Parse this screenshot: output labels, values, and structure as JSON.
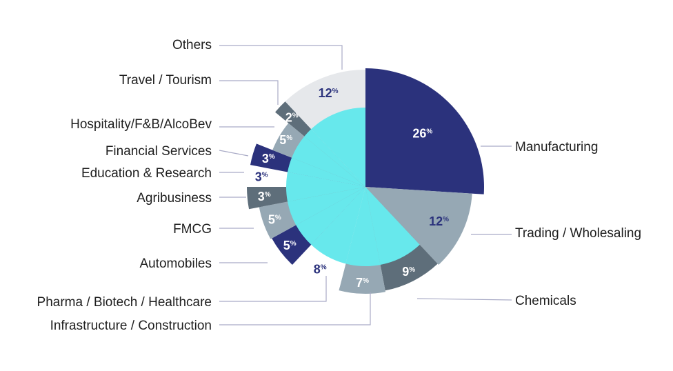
{
  "chart_data": {
    "type": "pie",
    "percent_symbol": "%",
    "colors": {
      "navy": "#2b327c",
      "slate": "#5e6e7a",
      "gray": "#96a8b4",
      "light": "#e6e8eb",
      "cyan": "#67e8ec",
      "leader": "#a9abc6",
      "text": "#1e1e1e"
    },
    "slices": [
      {
        "label": "Manufacturing",
        "value": 26,
        "color": "#2b327c",
        "text_color": "#ffffff"
      },
      {
        "label": "Trading / Wholesaling",
        "value": 12,
        "color": "#96a8b4",
        "text_color": "#2b327c"
      },
      {
        "label": "Chemicals",
        "value": 9,
        "color": "#5e6e7a",
        "text_color": "#ffffff"
      },
      {
        "label": "Infrastructure / Construction",
        "value": 7,
        "color": "#96a8b4",
        "text_color": "#ffffff"
      },
      {
        "label": "Pharma / Biotech / Healthcare",
        "value": 8,
        "color": "#ffffff",
        "text_color": "#2b327c"
      },
      {
        "label": "Automobiles",
        "value": 5,
        "color": "#2b327c",
        "text_color": "#ffffff"
      },
      {
        "label": "FMCG",
        "value": 5,
        "color": "#96a8b4",
        "text_color": "#ffffff"
      },
      {
        "label": "Agribusiness",
        "value": 3,
        "color": "#5e6e7a",
        "text_color": "#ffffff"
      },
      {
        "label": "Education & Research",
        "value": 3,
        "color": "#ffffff",
        "text_color": "#2b327c"
      },
      {
        "label": "Financial Services",
        "value": 3,
        "color": "#2b327c",
        "text_color": "#ffffff"
      },
      {
        "label": "Hospitality/F&B/AlcoBev",
        "value": 5,
        "color": "#96a8b4",
        "text_color": "#ffffff"
      },
      {
        "label": "Travel / Tourism",
        "value": 2,
        "color": "#5e6e7a",
        "text_color": "#ffffff"
      },
      {
        "label": "Others",
        "value": 12,
        "color": "#e6e8eb",
        "text_color": "#2b327c"
      }
    ]
  }
}
